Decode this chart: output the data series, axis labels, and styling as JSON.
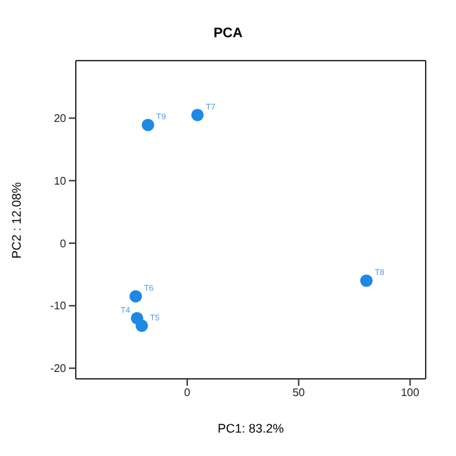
{
  "chart_data": {
    "type": "scatter",
    "title": "PCA",
    "xlabel": "PC1: 83.2%",
    "ylabel": "PC2 :  12.08%",
    "x": [
      -17.6,
      4.6,
      80.4,
      -23.1,
      -22.5,
      -20.4
    ],
    "values": [
      18.9,
      20.5,
      -6.0,
      -8.5,
      -12.0,
      -13.2
    ],
    "value_labels": [
      "T9",
      "T7",
      "T8",
      "T6",
      "T4",
      "T5"
    ],
    "color": "#1e88e5",
    "marker": "circle",
    "xlim": [
      -50,
      107
    ],
    "xticks": [
      0,
      50,
      100
    ],
    "ylim": [
      -21.7,
      29.2
    ],
    "yticks": [
      -20,
      -10,
      0,
      10,
      20
    ]
  }
}
